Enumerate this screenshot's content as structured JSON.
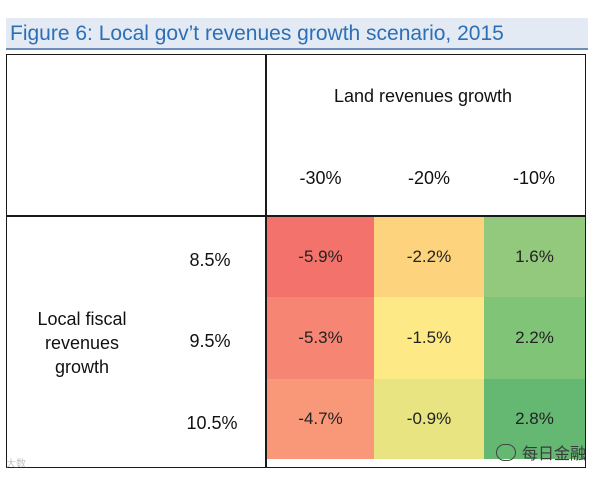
{
  "figure": {
    "label": "Figure 6:",
    "title": "Local gov’t revenues growth scenario, 2015"
  },
  "chart_data": {
    "type": "heatmap",
    "title": "Local gov’t revenues growth scenario, 2015",
    "column_header": "Land revenues growth",
    "row_header": "Local fiscal revenues growth",
    "columns": [
      "-30%",
      "-20%",
      "-10%"
    ],
    "rows": [
      "8.5%",
      "9.5%",
      "10.5%"
    ],
    "values": [
      [
        "-5.9%",
        "-2.2%",
        "1.6%"
      ],
      [
        "-5.3%",
        "-1.5%",
        "2.2%"
      ],
      [
        "-4.7%",
        "-0.9%",
        "2.8%"
      ]
    ],
    "numeric_values": [
      [
        -5.9,
        -2.2,
        1.6
      ],
      [
        -5.3,
        -1.5,
        2.2
      ],
      [
        -4.7,
        -0.9,
        2.8
      ]
    ],
    "cell_colors": [
      [
        "#f4726c",
        "#fdd37e",
        "#92c97c"
      ],
      [
        "#f68574",
        "#fde986",
        "#7fc477"
      ],
      [
        "#f99879",
        "#e9e482",
        "#64b872"
      ]
    ]
  },
  "watermark": {
    "text": "每日金融",
    "icon": "wechat-icon",
    "left_text": "大数"
  }
}
